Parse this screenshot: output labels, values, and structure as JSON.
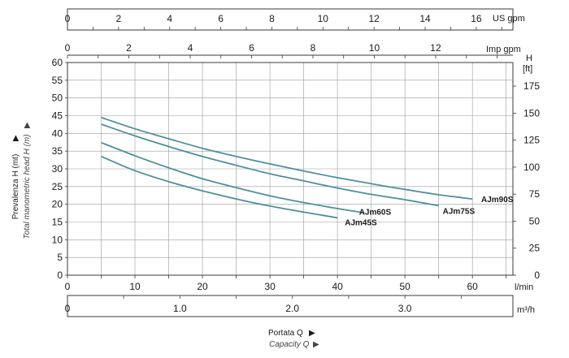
{
  "chart_data": {
    "type": "line",
    "x": [
      5,
      10,
      15,
      20,
      25,
      30,
      35,
      40,
      45,
      50,
      55,
      60
    ],
    "series": [
      {
        "name": "AJm90S",
        "points": [
          [
            5,
            44.5
          ],
          [
            10,
            41.3
          ],
          [
            15,
            38.5
          ],
          [
            20,
            35.8
          ],
          [
            25,
            33.5
          ],
          [
            30,
            31.4
          ],
          [
            35,
            29.4
          ],
          [
            40,
            27.5
          ],
          [
            45,
            25.8
          ],
          [
            50,
            24.2
          ],
          [
            55,
            22.7
          ],
          [
            60,
            21.5
          ]
        ],
        "label_at": [
          61.3,
          21.3
        ]
      },
      {
        "name": "AJm75S",
        "points": [
          [
            5,
            42.6
          ],
          [
            10,
            39.3
          ],
          [
            15,
            36.3
          ],
          [
            20,
            33.5
          ],
          [
            25,
            31.0
          ],
          [
            30,
            28.6
          ],
          [
            35,
            26.6
          ],
          [
            40,
            24.6
          ],
          [
            45,
            22.8
          ],
          [
            50,
            21.3
          ],
          [
            55,
            19.6
          ]
        ],
        "label_at": [
          55.6,
          18.0
        ]
      },
      {
        "name": "AJm60S",
        "points": [
          [
            5,
            37.4
          ],
          [
            10,
            33.7
          ],
          [
            15,
            30.3
          ],
          [
            20,
            27.2
          ],
          [
            25,
            24.7
          ],
          [
            30,
            22.4
          ],
          [
            35,
            20.5
          ],
          [
            40,
            18.8
          ],
          [
            44,
            17.6
          ]
        ],
        "label_at": [
          43.2,
          17.8
        ]
      },
      {
        "name": "AJm45S",
        "points": [
          [
            5,
            33.5
          ],
          [
            10,
            29.5
          ],
          [
            15,
            26.4
          ],
          [
            20,
            23.8
          ],
          [
            25,
            21.5
          ],
          [
            30,
            19.5
          ],
          [
            35,
            17.8
          ],
          [
            40,
            16.2
          ]
        ],
        "label_at": [
          41.1,
          14.8
        ]
      }
    ],
    "x_main": {
      "unit": "l/min",
      "ticks": [
        "0",
        "10",
        "20",
        "30",
        "40",
        "50",
        "60"
      ],
      "xlim": [
        0,
        66
      ]
    },
    "x_m3h": {
      "unit": "m³/h",
      "ticks": [
        "0",
        "1.0",
        "2.0",
        "3.0"
      ]
    },
    "x_us_gpm": {
      "unit": "US gpm",
      "ticks": [
        "0",
        "2",
        "4",
        "6",
        "8",
        "10",
        "12",
        "14",
        "16"
      ]
    },
    "x_imp_gpm": {
      "unit": "Imp gpm",
      "ticks": [
        "0",
        "2",
        "4",
        "6",
        "8",
        "10",
        "12"
      ]
    },
    "y_left": {
      "ticks": [
        "0",
        "5",
        "10",
        "15",
        "20",
        "25",
        "30",
        "35",
        "40",
        "45",
        "50",
        "55",
        "60"
      ],
      "ylim": [
        0,
        60
      ]
    },
    "y_right": {
      "unit_h": "H",
      "unit_ft": "[ft]",
      "ticks": [
        "0",
        "25",
        "50",
        "75",
        "100",
        "125",
        "150",
        "175"
      ]
    },
    "ylabel": "Prevalenza H (mt)",
    "ylabel_alt": "Total manometric head H (m)",
    "xlabel": "Portata Q",
    "xlabel_alt": "Capacity Q",
    "grid": true,
    "colors": {
      "curve": "#4f8f9d",
      "frame": "#3a3a3a",
      "grid": "#9a9a9a"
    }
  }
}
